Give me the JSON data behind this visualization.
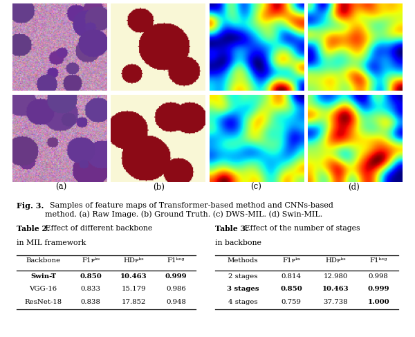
{
  "table2_title_bold": "Table 2.",
  "table2_title_normal": " Effect of different backbone\nin MIL framework",
  "table2_headers": [
    "Backbone",
    "F1ᴘᵏˢ",
    "HDᴘᵏˢ",
    "F1ᵏᵉᵍ"
  ],
  "table2_rows": [
    [
      "Swin-T",
      "0.850",
      "10.463",
      "0.999"
    ],
    [
      "VGG-16",
      "0.833",
      "15.179",
      "0.986"
    ],
    [
      "ResNet-18",
      "0.838",
      "17.852",
      "0.948"
    ]
  ],
  "table2_bold_rows": [
    0
  ],
  "table3_title_bold": "Table 3.",
  "table3_title_normal": " Effect of the number of stages\nin backbone",
  "table3_headers": [
    "Methods",
    "F1ᴘᵏˢ",
    "HDᴘᵏˢ",
    "F1ᵏᵉᵍ"
  ],
  "table3_rows": [
    [
      "2 stages",
      "0.814",
      "12.980",
      "0.998"
    ],
    [
      "3 stages",
      "0.850",
      "10.463",
      "0.999"
    ],
    [
      "4 stages",
      "0.759",
      "37.738",
      "1.000"
    ]
  ],
  "table3_bold_rows": [
    1
  ],
  "table3_bold_col_map": {
    "2": [
      3
    ]
  },
  "background_color": "#ffffff",
  "img_labels": [
    "(a)",
    "(b)",
    "(c)",
    "(d)"
  ],
  "caption_bold": "Fig. 3.",
  "caption_normal": "  Samples of feature maps of Transformer-based method and CNNs-based\nmethod. (a) Raw Image. (b) Ground Truth. (c) DWS-MIL. (d) Swin-MIL."
}
